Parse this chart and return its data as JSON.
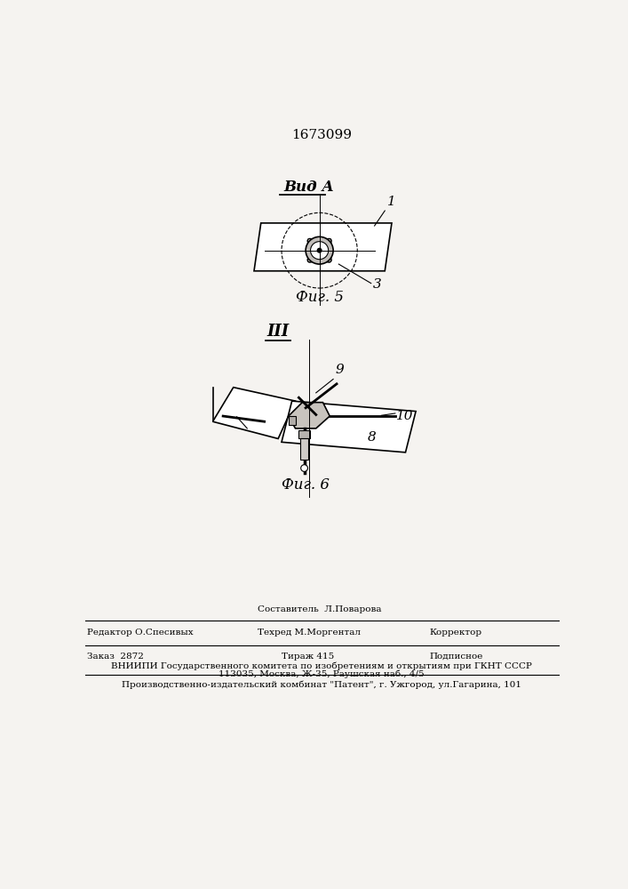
{
  "patent_number": "1673099",
  "bg_color": "#f5f3f0",
  "footer": {
    "line1_center_top": "Составитель  Л.Поварова",
    "line1_left": "Редактор О.Спесивых",
    "line1_center_bot": "Техред М.Моргентал",
    "line1_right": "Корректор",
    "line2_left": "Заказ  2872",
    "line2_center": "Тираж 415",
    "line2_right": "Подписное",
    "line3": "ВНИИПИ Государственного комитета по изобретениям и открытиям при ГКНТ СССР",
    "line4": "113035, Москва, Ж-35, Раушская наб., 4/5",
    "line5": "Производственно-издательский комбинат \"Патент\", г. Ужгород, ул.Гагарина, 101"
  }
}
